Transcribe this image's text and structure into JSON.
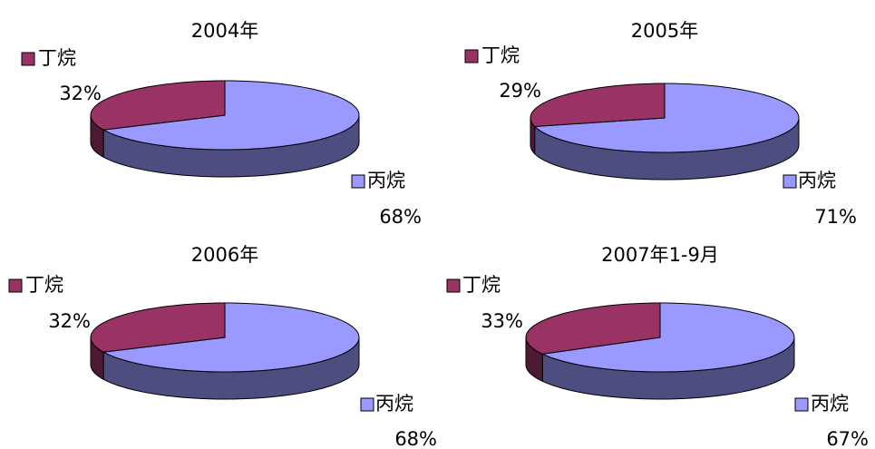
{
  "chart_data": [
    {
      "type": "pie",
      "title": "2004年",
      "categories": [
        "丙烷",
        "丁烷"
      ],
      "values": [
        68,
        32
      ],
      "value_labels": [
        "68%",
        "32%"
      ],
      "colors": [
        "#9999ff",
        "#993366"
      ]
    },
    {
      "type": "pie",
      "title": "2005年",
      "categories": [
        "丙烷",
        "丁烷"
      ],
      "values": [
        71,
        29
      ],
      "value_labels": [
        "71%",
        "29%"
      ],
      "colors": [
        "#9999ff",
        "#993366"
      ]
    },
    {
      "type": "pie",
      "title": "2006年",
      "categories": [
        "丙烷",
        "丁烷"
      ],
      "values": [
        68,
        32
      ],
      "value_labels": [
        "68%",
        "32%"
      ],
      "colors": [
        "#9999ff",
        "#993366"
      ]
    },
    {
      "type": "pie",
      "title": "2007年1-9月",
      "categories": [
        "丙烷",
        "丁烷"
      ],
      "values": [
        67,
        33
      ],
      "value_labels": [
        "67%",
        "33%"
      ],
      "colors": [
        "#9999ff",
        "#993366"
      ]
    }
  ]
}
